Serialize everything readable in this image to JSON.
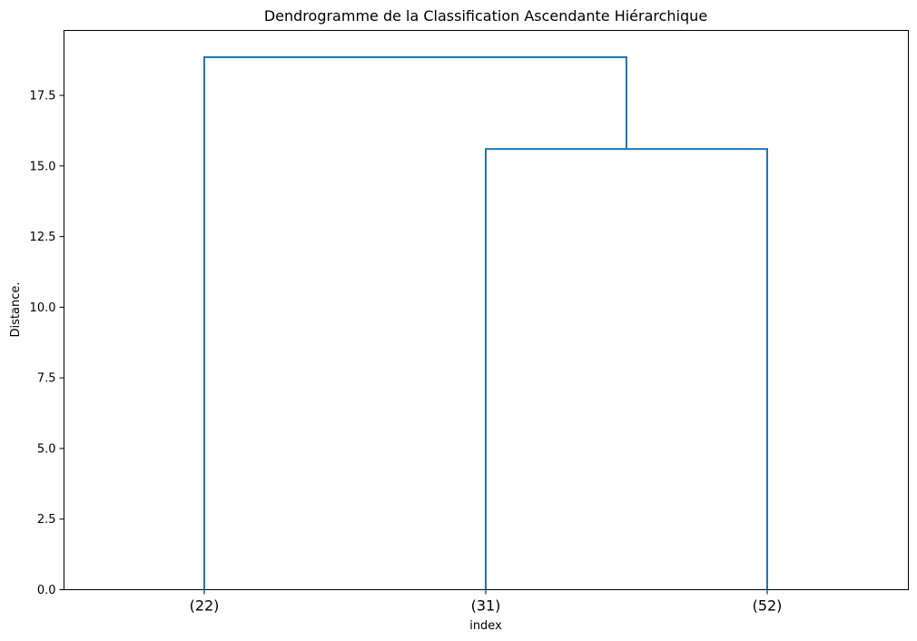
{
  "chart_data": {
    "type": "dendrogram",
    "title": "Dendrogramme de la Classification Ascendante Hiérarchique",
    "xlabel": "index",
    "ylabel": "Distance.",
    "ylim": [
      0,
      19.8
    ],
    "yticks": [
      0.0,
      2.5,
      5.0,
      7.5,
      10.0,
      12.5,
      15.0,
      17.5
    ],
    "ytick_labels": [
      "0.0",
      "2.5",
      "5.0",
      "7.5",
      "10.0",
      "12.5",
      "15.0",
      "17.5"
    ],
    "leaves": [
      "(22)",
      "(31)",
      "(52)"
    ],
    "links": [
      {
        "left": 1,
        "right": 2,
        "height": 15.6
      },
      {
        "left": 0,
        "right": "link0",
        "height": 18.85
      }
    ],
    "color": "#1f77b4",
    "grid": false
  }
}
